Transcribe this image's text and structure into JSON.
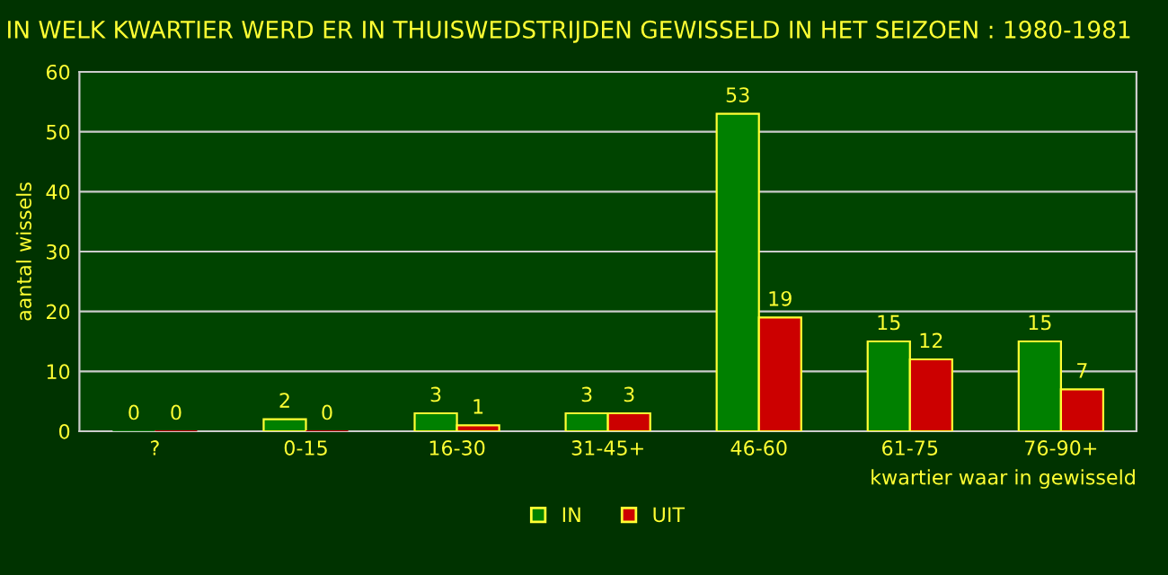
{
  "chart_data": {
    "type": "bar",
    "title": "IN WELK KWARTIER WERD ER IN THUISWEDSTRIJDEN GEWISSELD IN HET SEIZOEN : 1980-1981",
    "xlabel": "kwartier waar in gewisseld",
    "ylabel": "aantal wissels",
    "categories": [
      "?",
      "0-15",
      "16-30",
      "31-45+",
      "46-60",
      "61-75",
      "76-90+"
    ],
    "series": [
      {
        "name": "IN",
        "color": "#008000",
        "values": [
          0,
          2,
          3,
          3,
          53,
          15,
          15
        ]
      },
      {
        "name": "UIT",
        "color": "#cc0000",
        "values": [
          0,
          0,
          1,
          3,
          19,
          12,
          7
        ]
      }
    ],
    "ylim": [
      0,
      60
    ],
    "yticks": [
      0,
      10,
      20,
      30,
      40,
      50,
      60
    ],
    "grid": "y",
    "legend": "bottom",
    "data_labels": true
  }
}
